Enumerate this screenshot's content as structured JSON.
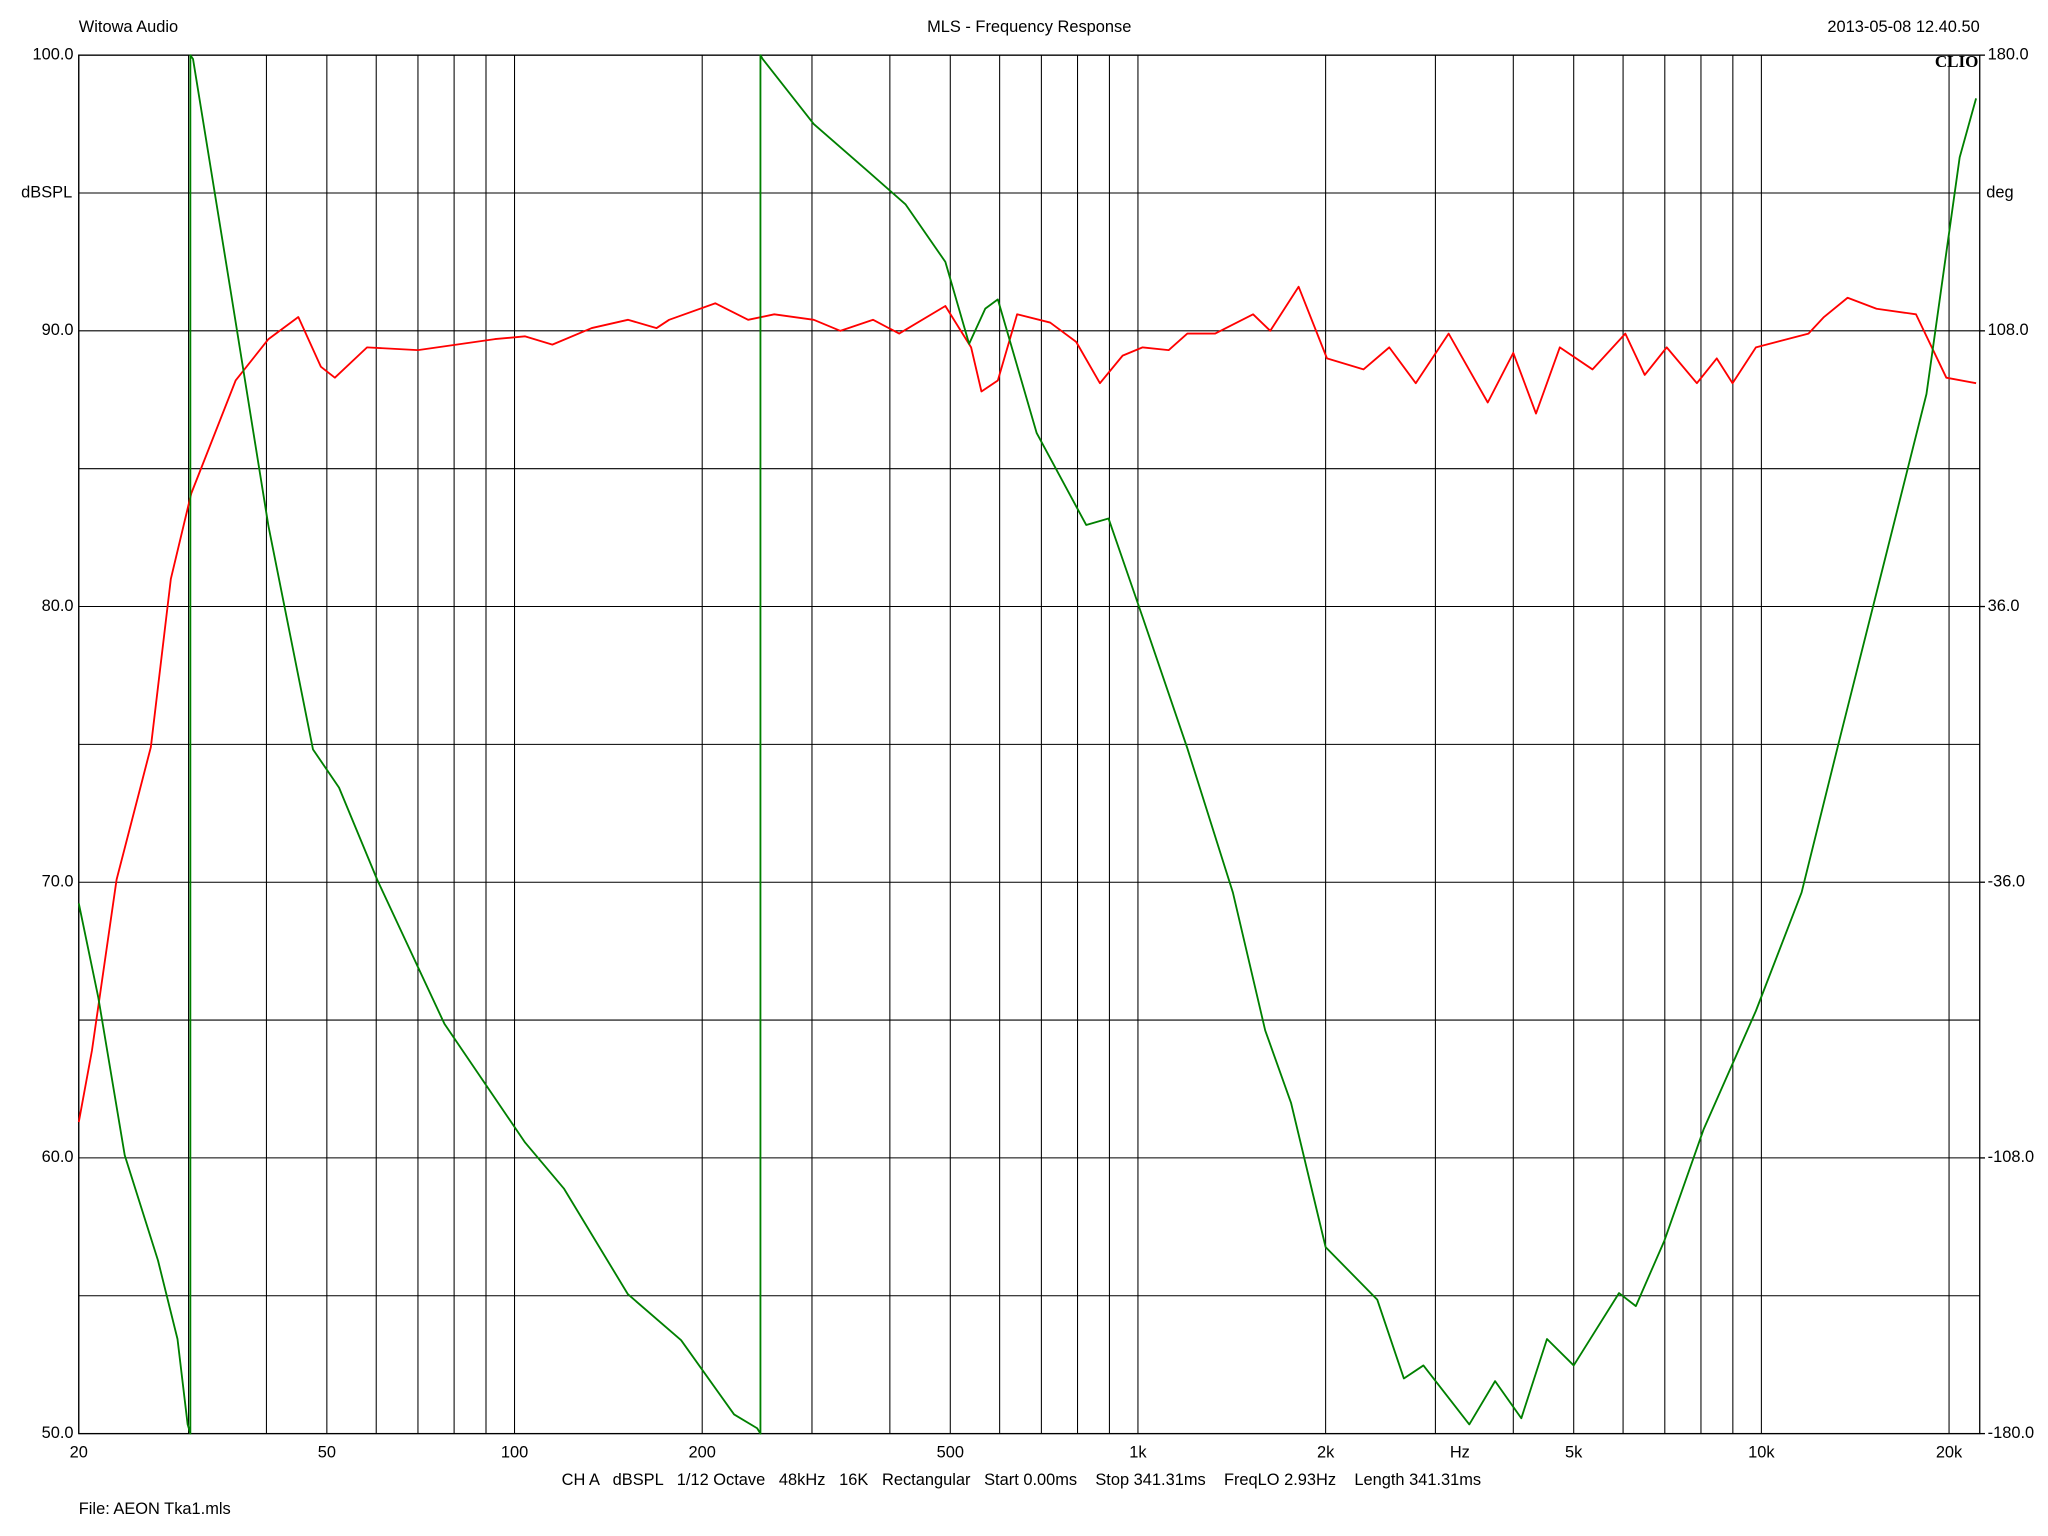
{
  "chart_data": {
    "type": "line",
    "header_left": "Witowa Audio",
    "title": "MLS - Frequency Response",
    "header_right": "2013-05-08 12.40.50",
    "logo": "CLIO",
    "ylabel": "dBSPL",
    "y2label": "deg",
    "xlabel": "Hz",
    "footer": "CH A   dBSPL   1/12 Octave   48kHz   16K   Rectangular   Start 0.00ms    Stop 341.31ms    FreqLO 2.93Hz    Length 341.31ms",
    "file": "File: AEON Tka1.mls",
    "xlog": true,
    "grid": true,
    "xlim": [
      20,
      22400
    ],
    "xticks": [
      20,
      50,
      100,
      200,
      500,
      {
        "value": 1000,
        "label": "1k"
      },
      {
        "value": 2000,
        "label": "2k"
      },
      {
        "value": 5000,
        "label": "5k"
      },
      {
        "value": 10000,
        "label": "10k"
      },
      {
        "value": 20000,
        "label": "20k"
      }
    ],
    "ylim": [
      50,
      100
    ],
    "yticks": [
      {
        "value": 50,
        "label": "50.0"
      },
      {
        "value": 60,
        "label": "60.0"
      },
      {
        "value": 70,
        "label": "70.0"
      },
      {
        "value": 80,
        "label": "80.0"
      },
      {
        "value": 90,
        "label": "90.0"
      },
      {
        "value": 100,
        "label": "100.0"
      }
    ],
    "y2lim": [
      -180,
      180
    ],
    "y2ticks": [
      {
        "value": -180,
        "label": "-180.0"
      },
      {
        "value": -108,
        "label": "-108.0"
      },
      {
        "value": -36,
        "label": "-36.0"
      },
      {
        "value": 36,
        "label": "36.0"
      },
      {
        "value": 108,
        "label": "108.0"
      },
      {
        "value": 180,
        "label": "180.0"
      }
    ],
    "series": [
      {
        "color": "#ff0000",
        "x": [
          20,
          21,
          23,
          26.1,
          28.1,
          30.3,
          35.7,
          40.3,
          45,
          48.9,
          51.5,
          58,
          70,
          93,
          104,
          115,
          133,
          152,
          169,
          177,
          210,
          237,
          261,
          302,
          333,
          376,
          414,
          491,
          540,
          561,
          596,
          640,
          723,
          796,
          869,
          945,
          1017,
          1120,
          1200,
          1330,
          1530,
          1630,
          1810,
          2010,
          2300,
          2530,
          2790,
          3150,
          3640,
          4000,
          4350,
          4750,
          5360,
          6050,
          6500,
          7050,
          7880,
          8480,
          8990,
          9800,
          11900,
          12600,
          13750,
          15300,
          17700,
          19800,
          22100
        ],
        "values": [
          61.3,
          63.9,
          70.1,
          74.9,
          81.0,
          84.1,
          88.2,
          89.7,
          90.5,
          88.7,
          88.3,
          89.4,
          89.3,
          89.7,
          89.8,
          89.5,
          90.1,
          90.4,
          90.1,
          90.4,
          91.0,
          90.4,
          90.6,
          90.4,
          90.0,
          90.4,
          89.9,
          90.9,
          89.4,
          87.8,
          88.2,
          90.6,
          90.3,
          89.6,
          88.1,
          89.1,
          89.4,
          89.3,
          89.9,
          89.9,
          90.6,
          90.0,
          91.6,
          89.0,
          88.6,
          89.4,
          88.1,
          89.9,
          87.4,
          89.2,
          87.0,
          89.4,
          88.6,
          89.9,
          88.4,
          89.4,
          88.1,
          89.0,
          88.1,
          89.4,
          89.9,
          90.5,
          91.2,
          90.8,
          90.6,
          88.3,
          88.1
        ]
      },
      {
        "color": "#008000",
        "axis": "y2",
        "x": [
          20,
          21.5,
          23.7,
          26.8,
          28.8,
          29.9,
          30.2,
          30.2,
          30.5,
          35,
          40.3,
          47.5,
          52.3,
          60.2,
          77.2,
          104,
          120,
          152,
          185,
          225,
          245,
          248,
          248,
          250,
          302,
          367,
          424,
          491,
          536,
          569,
          596,
          688,
          826,
          897,
          1017,
          1200,
          1420,
          1600,
          1760,
          2000,
          2420,
          2670,
          2870,
          3400,
          3740,
          4120,
          4530,
          5000,
          5910,
          6290,
          6990,
          8080,
          9800,
          11600,
          13400,
          15900,
          18400,
          20800,
          22100
        ],
        "values": [
          -41.5,
          -66.2,
          -107.3,
          -134.8,
          -155.3,
          -177.6,
          -180,
          180,
          179,
          119,
          57,
          -1.3,
          -11.3,
          -35.3,
          -73,
          -104,
          -116,
          -143.6,
          -155.6,
          -175,
          -178.6,
          -180,
          180,
          179,
          162,
          150,
          141,
          126,
          104.6,
          113.8,
          116.2,
          81.3,
          57.3,
          59,
          33.3,
          -1,
          -38.7,
          -74.7,
          -93.6,
          -131.3,
          -145,
          -165.6,
          -162.2,
          -177.6,
          -166.3,
          -176,
          -155.3,
          -162.2,
          -143.3,
          -146.7,
          -129.6,
          -100.5,
          -69.6,
          -38.7,
          2.4,
          50.4,
          91.5,
          153.3,
          168.7
        ]
      }
    ]
  }
}
